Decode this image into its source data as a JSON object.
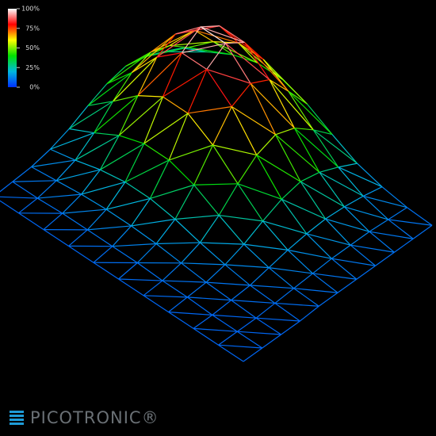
{
  "chart_data": {
    "type": "surface",
    "z": [
      [
        18,
        27,
        37,
        43,
        43,
        37,
        27,
        18,
        13,
        10,
        9
      ],
      [
        25,
        40,
        56,
        67,
        67,
        56,
        40,
        25,
        16,
        11,
        9
      ],
      [
        31,
        51,
        74,
        89,
        89,
        74,
        51,
        31,
        18,
        12,
        9
      ],
      [
        34,
        56,
        81,
        98,
        98,
        81,
        56,
        34,
        19,
        12,
        9
      ],
      [
        31,
        51,
        74,
        89,
        89,
        74,
        51,
        31,
        18,
        12,
        9
      ],
      [
        25,
        40,
        56,
        67,
        67,
        56,
        40,
        25,
        16,
        11,
        9
      ],
      [
        18,
        27,
        37,
        43,
        43,
        37,
        27,
        18,
        13,
        10,
        9
      ],
      [
        13,
        17,
        22,
        25,
        25,
        22,
        17,
        13,
        10,
        9,
        8
      ],
      [
        10,
        12,
        14,
        15,
        15,
        14,
        12,
        10,
        9,
        8,
        8
      ],
      [
        9,
        9,
        10,
        10,
        10,
        10,
        9,
        9,
        8,
        8,
        8
      ],
      [
        8,
        8,
        8,
        8,
        8,
        8,
        8,
        8,
        8,
        8,
        8
      ]
    ],
    "zlim": [
      0,
      100
    ],
    "zticks": [
      {
        "value": 0,
        "label": "0%"
      },
      {
        "value": 25,
        "label": "25%"
      },
      {
        "value": 50,
        "label": "50%"
      },
      {
        "value": 75,
        "label": "75%"
      },
      {
        "value": 100,
        "label": "100%"
      }
    ],
    "colorscale": [
      "#0030ff",
      "#00b8e0",
      "#00e000",
      "#ffff00",
      "#ff0000",
      "#ffffff"
    ]
  },
  "logo": "PICOTRONIC®"
}
